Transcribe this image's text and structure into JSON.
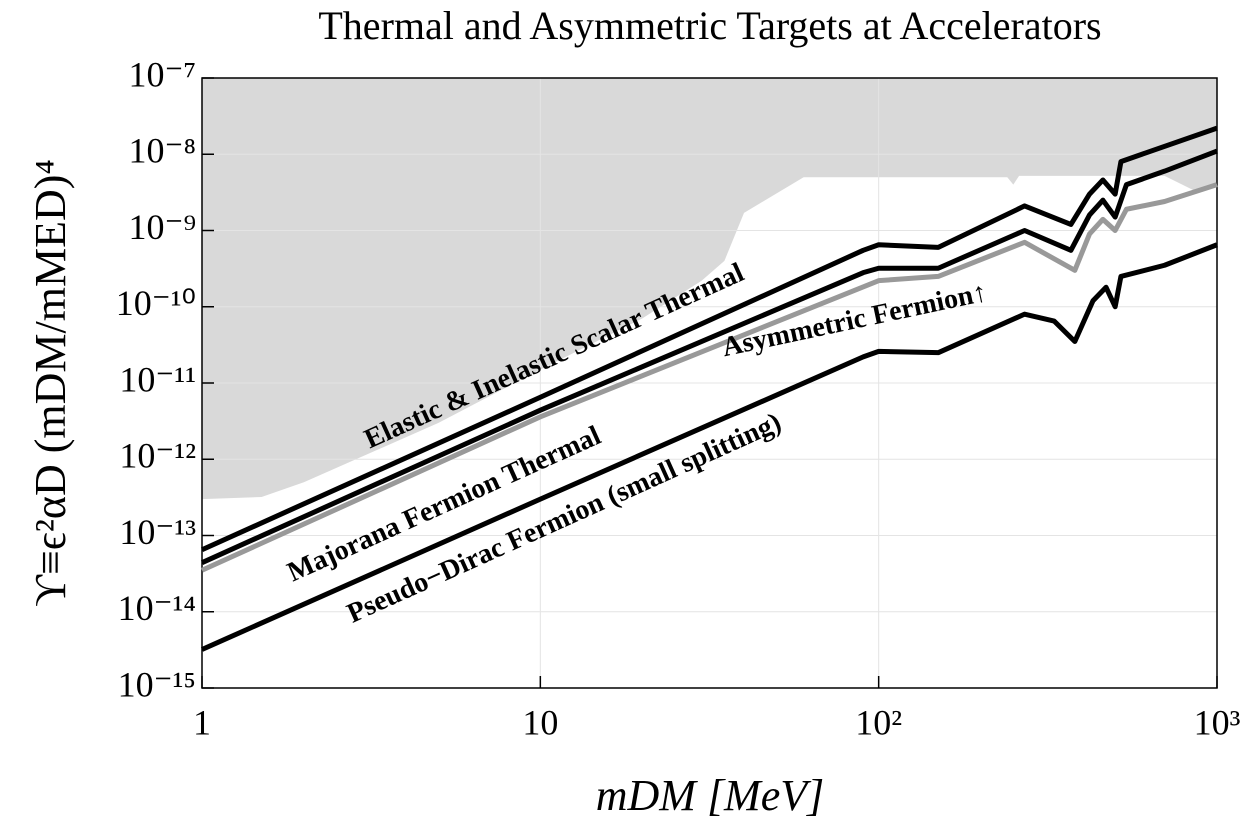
{
  "chart_data": {
    "type": "line",
    "title": "Thermal and Asymmetric Targets at Accelerators",
    "xlabel": "mDM [MeV]",
    "ylabel": "ϒ≡ϵ²αD (mDM/mMED)⁴",
    "log_x": true,
    "log_y": true,
    "grid": true,
    "xlim": [
      1,
      1000
    ],
    "ylim": [
      1e-15,
      1e-07
    ],
    "xticks": [
      1,
      10,
      {
        "value": 100,
        "label": "10²"
      },
      {
        "value": 1000,
        "label": "10³"
      }
    ],
    "yticks": [
      {
        "value": 1e-15,
        "label": "10⁻¹⁵"
      },
      {
        "value": 1e-14,
        "label": "10⁻¹⁴"
      },
      {
        "value": 1e-13,
        "label": "10⁻¹³"
      },
      {
        "value": 1e-12,
        "label": "10⁻¹²"
      },
      {
        "value": 1e-11,
        "label": "10⁻¹¹"
      },
      {
        "value": 1e-10,
        "label": "10⁻¹⁰"
      },
      {
        "value": 1e-09,
        "label": "10⁻⁹"
      },
      {
        "value": 1e-08,
        "label": "10⁻⁸"
      },
      {
        "value": 1e-07,
        "label": "10⁻⁷"
      }
    ],
    "excluded_region": {
      "color": "#d9d9d9",
      "x": [
        1,
        1.5,
        2,
        5,
        10,
        20,
        30,
        35,
        40,
        60,
        240,
        250,
        260,
        700,
        850,
        1000
      ],
      "values": [
        3e-13,
        3.2e-13,
        5e-13,
        3e-12,
        1.5e-11,
        7e-11,
        2.2e-10,
        4e-10,
        1.7e-09,
        5e-09,
        5e-09,
        4e-09,
        5.2e-09,
        5.2e-09,
        3.4e-09,
        4e-09
      ]
    },
    "series": [
      {
        "name": "Elastic & Inelastic Scalar Thermal",
        "color": "#000000",
        "x": [
          1,
          10,
          90,
          100,
          150,
          270,
          370,
          420,
          460,
          500,
          520,
          600,
          1000
        ],
        "values": [
          6.5e-14,
          6.5e-12,
          5.5e-10,
          6.5e-10,
          6e-10,
          2.1e-09,
          1.2e-09,
          3e-09,
          4.6e-09,
          3e-09,
          8e-09,
          1e-08,
          2.2e-08
        ]
      },
      {
        "name": "Majorana Fermion Thermal",
        "color": "#000000",
        "x": [
          1,
          10,
          90,
          100,
          150,
          270,
          370,
          420,
          460,
          500,
          540,
          700,
          1000
        ],
        "values": [
          4.4e-14,
          4.4e-12,
          2.8e-10,
          3.2e-10,
          3.2e-10,
          1e-09,
          5.5e-10,
          1.6e-09,
          2.5e-09,
          1.5e-09,
          4e-09,
          6e-09,
          1.1e-08
        ]
      },
      {
        "name": "Asymmetric Fermion↑",
        "color": "#999999",
        "x": [
          1,
          10,
          100,
          150,
          270,
          380,
          420,
          460,
          500,
          540,
          700,
          1000
        ],
        "values": [
          3.5e-14,
          3.6e-12,
          2.2e-10,
          2.5e-10,
          7e-10,
          3e-10,
          9e-10,
          1.4e-09,
          1e-09,
          1.9e-09,
          2.4e-09,
          4e-09
        ]
      },
      {
        "name": "Pseudo−Dirac Fermion (small splitting)",
        "color": "#000000",
        "x": [
          1,
          10,
          90,
          100,
          150,
          270,
          330,
          380,
          430,
          470,
          500,
          520,
          700,
          1000
        ],
        "values": [
          3.2e-15,
          3e-13,
          2.2e-11,
          2.6e-11,
          2.5e-11,
          8e-11,
          6.5e-11,
          3.5e-11,
          1.2e-10,
          1.8e-10,
          1e-10,
          2.5e-10,
          3.5e-10,
          6.5e-10
        ]
      }
    ]
  }
}
